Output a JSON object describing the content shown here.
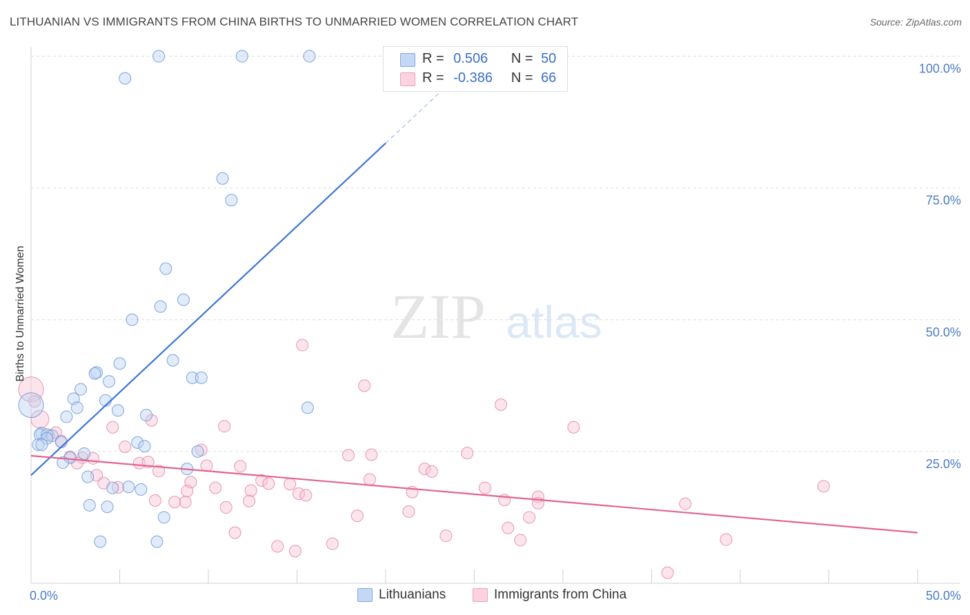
{
  "header": {
    "title": "LITHUANIAN VS IMMIGRANTS FROM CHINA BIRTHS TO UNMARRIED WOMEN CORRELATION CHART",
    "source": "Source: ZipAtlas.com"
  },
  "watermark": {
    "zip": "ZIP",
    "atlas": "atlas"
  },
  "legend": {
    "rows": [
      {
        "r_label": "R =",
        "r_value": "0.506",
        "n_label": "N =",
        "n_value": "50",
        "color": "#9fc1ee"
      },
      {
        "r_label": "R =",
        "r_value": "-0.386",
        "n_label": "N =",
        "n_value": "66",
        "color": "#f5b8cb"
      }
    ]
  },
  "bottom_legend": {
    "items": [
      {
        "label": "Lithuanians",
        "color": "#9fc1ee"
      },
      {
        "label": "Immigrants from China",
        "color": "#f5b8cb"
      }
    ]
  },
  "chart_data": {
    "type": "scatter",
    "title": "LITHUANIAN VS IMMIGRANTS FROM CHINA BIRTHS TO UNMARRIED WOMEN CORRELATION CHART",
    "xlabel": "",
    "ylabel": "Births to Unmarried Women",
    "xlim": [
      0,
      50
    ],
    "ylim": [
      0,
      100
    ],
    "x_tick_labels": [
      "0.0%",
      "50.0%"
    ],
    "y_tick_labels": [
      "25.0%",
      "50.0%",
      "75.0%",
      "100.0%"
    ],
    "y_ticks": [
      25,
      50,
      75,
      100
    ],
    "grid": "horizontal dashed",
    "legend_position": "top-center",
    "colors": {
      "lithuanians": "#3a74d4",
      "china": "#e3628f"
    },
    "series": [
      {
        "name": "Lithuanians",
        "r": 0.506,
        "n": 50,
        "trend": {
          "x0": 0,
          "y0": 20.5,
          "x1": 20,
          "y1": 83.5,
          "dashed_to_x": 23.5
        },
        "points": [
          [
            7.2,
            100
          ],
          [
            11.9,
            100
          ],
          [
            15.7,
            100
          ],
          [
            5.3,
            95.8
          ],
          [
            10.8,
            76.8
          ],
          [
            11.3,
            72.7
          ],
          [
            7.6,
            59.7
          ],
          [
            8.6,
            53.8
          ],
          [
            7.3,
            52.5
          ],
          [
            5.7,
            50.0
          ],
          [
            8.0,
            42.3
          ],
          [
            5.0,
            41.7
          ],
          [
            3.7,
            40.0
          ],
          [
            3.6,
            39.8
          ],
          [
            9.1,
            39.0
          ],
          [
            9.6,
            39.0
          ],
          [
            4.4,
            38.3
          ],
          [
            2.8,
            36.8
          ],
          [
            2.4,
            35.0
          ],
          [
            4.2,
            34.7
          ],
          [
            15.6,
            33.3
          ],
          [
            2.6,
            33.3
          ],
          [
            4.9,
            32.8
          ],
          [
            6.5,
            31.9
          ],
          [
            2.0,
            31.6
          ],
          [
            0.0,
            33.8
          ],
          [
            0.6,
            28.5
          ],
          [
            0.5,
            28.2
          ],
          [
            0.9,
            28.2
          ],
          [
            1.2,
            28.0
          ],
          [
            0.9,
            27.5
          ],
          [
            1.7,
            26.8
          ],
          [
            0.4,
            26.3
          ],
          [
            0.6,
            26.3
          ],
          [
            6.0,
            26.7
          ],
          [
            6.4,
            26.0
          ],
          [
            9.4,
            25.0
          ],
          [
            3.0,
            24.6
          ],
          [
            2.2,
            23.8
          ],
          [
            1.8,
            22.9
          ],
          [
            8.8,
            21.7
          ],
          [
            3.2,
            20.2
          ],
          [
            5.5,
            18.3
          ],
          [
            4.6,
            18.1
          ],
          [
            6.2,
            17.8
          ],
          [
            3.3,
            14.8
          ],
          [
            4.3,
            14.5
          ],
          [
            7.5,
            12.5
          ],
          [
            3.9,
            7.9
          ],
          [
            7.1,
            7.9
          ]
        ]
      },
      {
        "name": "Immigrants from China",
        "r": -0.386,
        "n": 66,
        "trend": {
          "x0": 0,
          "y0": 24.2,
          "x1": 50,
          "y1": 9.6
        },
        "points": [
          [
            0.0,
            36.8
          ],
          [
            0.5,
            31.1
          ],
          [
            15.3,
            45.2
          ],
          [
            18.8,
            37.5
          ],
          [
            26.5,
            33.9
          ],
          [
            6.8,
            30.9
          ],
          [
            4.6,
            29.6
          ],
          [
            10.9,
            29.8
          ],
          [
            30.6,
            29.6
          ],
          [
            1.4,
            28.6
          ],
          [
            1.7,
            27.0
          ],
          [
            5.3,
            25.9
          ],
          [
            9.6,
            25.3
          ],
          [
            19.2,
            24.4
          ],
          [
            24.6,
            24.7
          ],
          [
            2.2,
            24.0
          ],
          [
            17.9,
            24.3
          ],
          [
            2.9,
            23.8
          ],
          [
            3.5,
            23.7
          ],
          [
            2.6,
            22.8
          ],
          [
            6.1,
            22.8
          ],
          [
            6.6,
            23.0
          ],
          [
            9.9,
            22.3
          ],
          [
            11.8,
            22.2
          ],
          [
            22.2,
            21.7
          ],
          [
            22.6,
            21.2
          ],
          [
            7.2,
            21.3
          ],
          [
            3.7,
            20.5
          ],
          [
            19.1,
            19.7
          ],
          [
            13.0,
            19.5
          ],
          [
            9.0,
            19.2
          ],
          [
            13.4,
            18.9
          ],
          [
            14.6,
            18.8
          ],
          [
            4.1,
            19.0
          ],
          [
            4.9,
            18.2
          ],
          [
            10.4,
            18.1
          ],
          [
            44.7,
            18.4
          ],
          [
            25.6,
            18.1
          ],
          [
            8.8,
            17.5
          ],
          [
            12.4,
            17.6
          ],
          [
            15.1,
            17.0
          ],
          [
            15.5,
            16.7
          ],
          [
            21.5,
            17.3
          ],
          [
            28.6,
            16.4
          ],
          [
            26.7,
            15.8
          ],
          [
            7.0,
            15.7
          ],
          [
            12.3,
            15.6
          ],
          [
            8.7,
            15.4
          ],
          [
            8.1,
            15.4
          ],
          [
            28.6,
            15.2
          ],
          [
            36.9,
            15.1
          ],
          [
            11.0,
            14.4
          ],
          [
            21.3,
            13.6
          ],
          [
            18.4,
            12.8
          ],
          [
            28.1,
            12.5
          ],
          [
            26.9,
            10.5
          ],
          [
            11.5,
            9.6
          ],
          [
            23.4,
            9.0
          ],
          [
            27.6,
            8.2
          ],
          [
            39.2,
            8.3
          ],
          [
            17.0,
            7.5
          ],
          [
            13.9,
            7.0
          ],
          [
            14.9,
            6.1
          ],
          [
            35.9,
            2.0
          ],
          [
            0.2,
            34.5
          ],
          [
            1.0,
            28.0
          ]
        ]
      }
    ]
  }
}
